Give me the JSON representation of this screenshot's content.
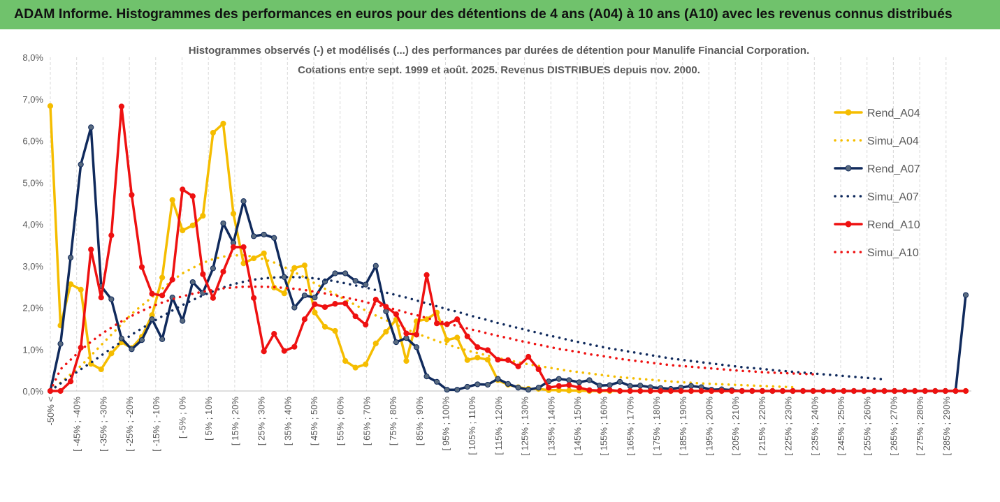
{
  "header": {
    "title": "ADAM Informe. Histogrammes des performances en euros pour des détentions de 4 ans (A04) à 10 ans (A10) avec les revenus connus distribués"
  },
  "chart_data": {
    "type": "line",
    "title_line1": "Histogrammes observés (-) et modélisés (...) des performances par durées de détention pour Manulife Financial Corporation.",
    "title_line2": "Cotations entre sept. 1999 et août. 2025. Revenus DISTRIBUES depuis nov. 2000.",
    "ylim": [
      0,
      0.08
    ],
    "y_ticks": [
      "0,0%",
      "1,0%",
      "2,0%",
      "3,0%",
      "4,0%",
      "5,0%",
      "6,0%",
      "7,0%",
      "8,0%"
    ],
    "x_tick_labels": [
      "-50% <",
      "[ -45% ; -40%",
      "[ -35% ; -30%",
      "[ -25% ; -20%",
      "[ -15% ; -10%",
      "[ -5% ; 0%",
      "[ 5% ; 10%",
      "[ 15% ; 20%",
      "[ 25% ; 30%",
      "[ 35% ; 40%",
      "[ 45% ; 50%",
      "[ 55% ; 60%",
      "[ 65% ; 70%",
      "[ 75% ; 80%",
      "[ 85% ; 90%",
      "[ 95% ; 100%",
      "[ 105% ; 110%",
      "[ 115% ; 120%",
      "[ 125% ; 130%",
      "[ 135% ; 140%",
      "[ 145% ; 150%",
      "[ 155% ; 160%",
      "[ 165% ; 170%",
      "[ 175% ; 180%",
      "[ 185% ; 190%",
      "[ 195% ; 200%",
      "[ 205% ; 210%",
      "[ 215% ; 220%",
      "[ 225% ; 230%",
      "[ 235% ; 240%",
      "[ 245% ; 250%",
      "[ 255% ; 260%",
      "[ 265% ; 270%",
      "[ 275% ; 280%",
      "[ 285% ; 290%"
    ],
    "grid": "vertical",
    "legend_position": "right",
    "series": [
      {
        "name": "Rend_A04",
        "color": "#f5bd00",
        "style": "solid",
        "markers": true,
        "values": [
          0.0683,
          0.0157,
          0.0256,
          0.0243,
          0.0065,
          0.0052,
          0.009,
          0.0117,
          0.0103,
          0.013,
          0.0182,
          0.0272,
          0.0458,
          0.0385,
          0.0397,
          0.042,
          0.0619,
          0.0641,
          0.0425,
          0.0306,
          0.0318,
          0.033,
          0.0248,
          0.0234,
          0.0295,
          0.0301,
          0.0188,
          0.0154,
          0.0144,
          0.0072,
          0.0056,
          0.0064,
          0.0114,
          0.0142,
          0.0171,
          0.0072,
          0.0167,
          0.0172,
          0.0188,
          0.0122,
          0.0128,
          0.0074,
          0.008,
          0.0075,
          0.0026,
          0.0015,
          0.0009,
          0.0005,
          0.0005,
          0.0002,
          0.0002,
          0.0001,
          0.0001,
          0.0,
          0.0,
          0.0,
          0.0,
          0.0,
          0.0,
          0.0,
          0.0,
          0.0,
          0.0,
          0.0,
          0.0,
          0.0,
          0.0,
          0.0,
          0.0,
          0.0,
          0.0,
          0.0,
          0.0,
          0.0,
          0.0,
          0.0,
          0.0,
          0.0,
          0.0,
          0.0,
          0.0,
          0.0,
          0.0,
          0.0,
          0.0,
          0.0,
          0.0,
          0.0,
          0.0,
          0.0,
          0.0
        ]
      },
      {
        "name": "Simu_A04",
        "color": "#f5bd00",
        "style": "dotted",
        "markers": false,
        "values": [
          0.0,
          0.002,
          0.004,
          0.006,
          0.0085,
          0.011,
          0.0135,
          0.016,
          0.0185,
          0.0205,
          0.0225,
          0.0245,
          0.0265,
          0.0282,
          0.0295,
          0.0307,
          0.0316,
          0.0322,
          0.0325,
          0.0325,
          0.0322,
          0.0316,
          0.0308,
          0.0297,
          0.0285,
          0.0272,
          0.0258,
          0.0245,
          0.0232,
          0.0219,
          0.0206,
          0.0193,
          0.0181,
          0.017,
          0.0159,
          0.0148,
          0.0138,
          0.0129,
          0.012,
          0.0112,
          0.0104,
          0.0097,
          0.0091,
          0.0085,
          0.0079,
          0.0074,
          0.0069,
          0.0064,
          0.006,
          0.0056,
          0.0052,
          0.0048,
          0.0045,
          0.0042,
          0.0039,
          0.0036,
          0.0033,
          0.0031,
          0.0029,
          0.0027,
          0.0025,
          0.0023,
          0.0021,
          0.002,
          0.0018,
          0.0017,
          0.0016,
          0.0015,
          0.0014,
          0.0013,
          0.0012,
          0.0011,
          0.001,
          0.0009
        ]
      },
      {
        "name": "Rend_A07",
        "color": "#102a5c",
        "style": "solid",
        "markers": true,
        "values": [
          0.0,
          0.0113,
          0.032,
          0.0543,
          0.0632,
          0.0251,
          0.022,
          0.0126,
          0.01,
          0.0122,
          0.0172,
          0.0124,
          0.0224,
          0.0168,
          0.0261,
          0.0235,
          0.0294,
          0.0402,
          0.0355,
          0.0455,
          0.0371,
          0.0375,
          0.0367,
          0.0273,
          0.02,
          0.0229,
          0.0224,
          0.0262,
          0.0282,
          0.0282,
          0.0264,
          0.0255,
          0.03,
          0.0191,
          0.0117,
          0.0127,
          0.0105,
          0.0035,
          0.0022,
          0.0003,
          0.0003,
          0.001,
          0.0016,
          0.0015,
          0.0029,
          0.0017,
          0.0008,
          0.0003,
          0.0008,
          0.0023,
          0.0029,
          0.0026,
          0.0021,
          0.0026,
          0.0013,
          0.0014,
          0.0022,
          0.0012,
          0.0013,
          0.0009,
          0.0007,
          0.0005,
          0.0008,
          0.0012,
          0.0009,
          0.0003,
          0.0004,
          0.0002,
          0.0,
          0.0,
          0.0,
          0.0,
          0.0,
          0.0,
          0.0,
          0.0,
          0.0,
          0.0,
          0.0,
          0.0,
          0.0,
          0.0,
          0.0,
          0.0,
          0.0,
          0.0,
          0.0,
          0.0,
          0.0,
          0.0,
          0.023
        ]
      },
      {
        "name": "Simu_A07",
        "color": "#102a5c",
        "style": "dotted",
        "markers": false,
        "values": [
          0.0,
          0.0018,
          0.0035,
          0.0052,
          0.0068,
          0.0085,
          0.0102,
          0.0118,
          0.0135,
          0.015,
          0.0165,
          0.0179,
          0.0193,
          0.0206,
          0.0218,
          0.0229,
          0.0239,
          0.0248,
          0.0256,
          0.0262,
          0.0267,
          0.027,
          0.0272,
          0.0273,
          0.0273,
          0.0272,
          0.027,
          0.0267,
          0.0263,
          0.0258,
          0.0253,
          0.0248,
          0.0242,
          0.0236,
          0.023,
          0.0224,
          0.0217,
          0.021,
          0.0203,
          0.0196,
          0.019,
          0.0183,
          0.0176,
          0.017,
          0.0163,
          0.0157,
          0.0151,
          0.0145,
          0.0139,
          0.0133,
          0.0128,
          0.0122,
          0.0117,
          0.0112,
          0.0107,
          0.0102,
          0.0098,
          0.0094,
          0.009,
          0.0086,
          0.0082,
          0.0078,
          0.0075,
          0.0072,
          0.0069,
          0.0066,
          0.0063,
          0.006,
          0.0057,
          0.0055,
          0.0053,
          0.005,
          0.0048,
          0.0046,
          0.0044,
          0.0042,
          0.004,
          0.0038,
          0.0036,
          0.0034,
          0.0032,
          0.003,
          0.0028
        ]
      },
      {
        "name": "Rend_A10",
        "color": "#ee1111",
        "style": "solid",
        "markers": true,
        "values": [
          0.0,
          0.0,
          0.0023,
          0.0104,
          0.0339,
          0.0224,
          0.0373,
          0.0682,
          0.047,
          0.0297,
          0.0233,
          0.0229,
          0.0267,
          0.0483,
          0.0467,
          0.028,
          0.0223,
          0.0286,
          0.0345,
          0.0345,
          0.0223,
          0.0095,
          0.0137,
          0.0096,
          0.0106,
          0.0172,
          0.0208,
          0.0201,
          0.0209,
          0.021,
          0.0179,
          0.0159,
          0.0219,
          0.0202,
          0.0184,
          0.0138,
          0.0135,
          0.0278,
          0.0162,
          0.016,
          0.0172,
          0.0131,
          0.0105,
          0.0098,
          0.0075,
          0.0074,
          0.0059,
          0.0082,
          0.0052,
          0.0008,
          0.0012,
          0.0014,
          0.0008,
          0.0002,
          0.0001,
          0.0002,
          0.0,
          0.0,
          0.0,
          0.0,
          0.0,
          0.0,
          0.0,
          0.0,
          0.0,
          0.0,
          0.0,
          0.0,
          0.0,
          0.0,
          0.0,
          0.0,
          0.0,
          0.0,
          0.0,
          0.0,
          0.0,
          0.0,
          0.0,
          0.0,
          0.0,
          0.0,
          0.0,
          0.0,
          0.0,
          0.0,
          0.0,
          0.0,
          0.0,
          0.0,
          0.0
        ]
      },
      {
        "name": "Simu_A10",
        "color": "#ee1111",
        "style": "dotted",
        "markers": false,
        "values": [
          0.0,
          0.0052,
          0.0075,
          0.0098,
          0.0118,
          0.0136,
          0.0152,
          0.0167,
          0.018,
          0.0192,
          0.0203,
          0.0212,
          0.022,
          0.0227,
          0.0233,
          0.0238,
          0.0242,
          0.0246,
          0.0248,
          0.025,
          0.025,
          0.025,
          0.0249,
          0.0247,
          0.0245,
          0.0242,
          0.0238,
          0.0234,
          0.0229,
          0.0224,
          0.0219,
          0.0213,
          0.0207,
          0.0201,
          0.0195,
          0.0188,
          0.0182,
          0.0175,
          0.0169,
          0.0162,
          0.0156,
          0.015,
          0.0144,
          0.0138,
          0.0132,
          0.0127,
          0.0121,
          0.0116,
          0.0111,
          0.0106,
          0.0101,
          0.0097,
          0.0093,
          0.0088,
          0.0085,
          0.0081,
          0.0077,
          0.0074,
          0.0071,
          0.0068,
          0.0065,
          0.0062,
          0.006,
          0.0058,
          0.0056,
          0.0054,
          0.0052,
          0.005,
          0.0048,
          0.0047,
          0.0045,
          0.0044,
          0.0043,
          0.0042,
          0.0041,
          0.004
        ]
      }
    ]
  }
}
